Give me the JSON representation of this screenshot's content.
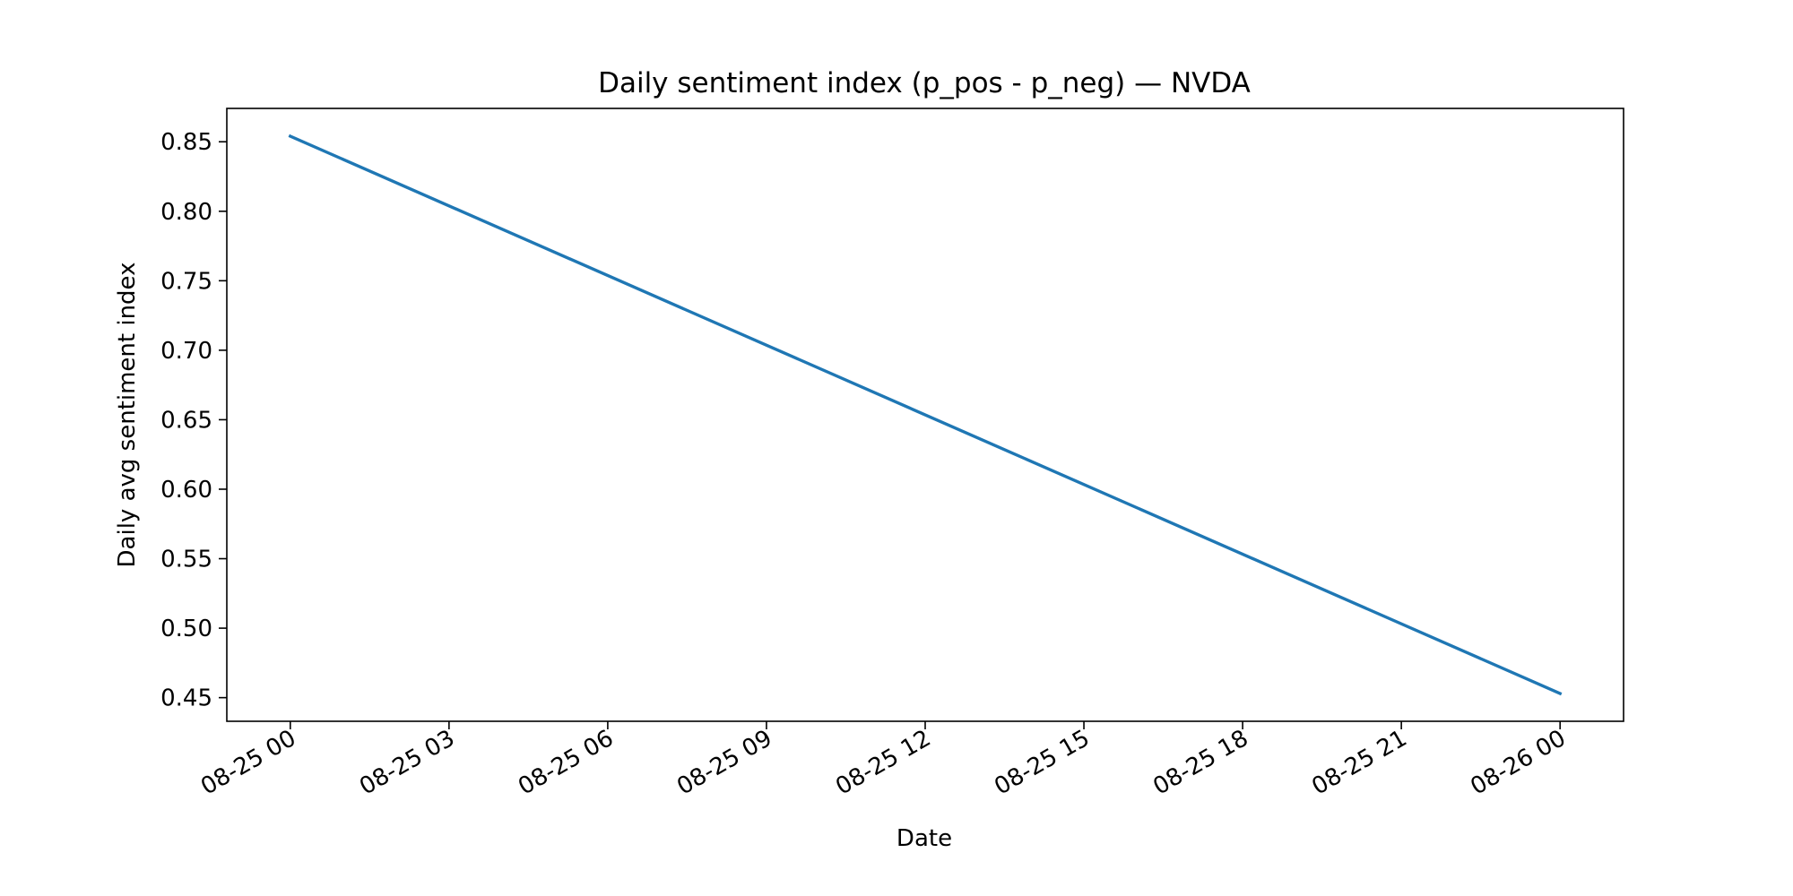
{
  "chart_data": {
    "type": "line",
    "title": "Daily sentiment index (p_pos - p_neg) — NVDA",
    "xlabel": "Date",
    "ylabel": "Daily avg sentiment index",
    "x_tick_labels": [
      "08-25 00",
      "08-25 03",
      "08-25 06",
      "08-25 09",
      "08-25 12",
      "08-25 15",
      "08-25 18",
      "08-25 21",
      "08-26 00"
    ],
    "y_tick_labels": [
      "0.45",
      "0.50",
      "0.55",
      "0.60",
      "0.65",
      "0.70",
      "0.75",
      "0.80",
      "0.85"
    ],
    "y_ticks": [
      0.45,
      0.5,
      0.55,
      0.6,
      0.65,
      0.7,
      0.75,
      0.8,
      0.85
    ],
    "xlim": [
      "2025-08-24 22:48",
      "2025-08-26 01:12"
    ],
    "ylim": [
      0.433,
      0.874
    ],
    "grid": false,
    "line_color": "#1f77b4",
    "series": [
      {
        "x": [
          "2025-08-25 00:00",
          "2025-08-26 00:00"
        ],
        "values": [
          0.854,
          0.453
        ]
      }
    ]
  }
}
